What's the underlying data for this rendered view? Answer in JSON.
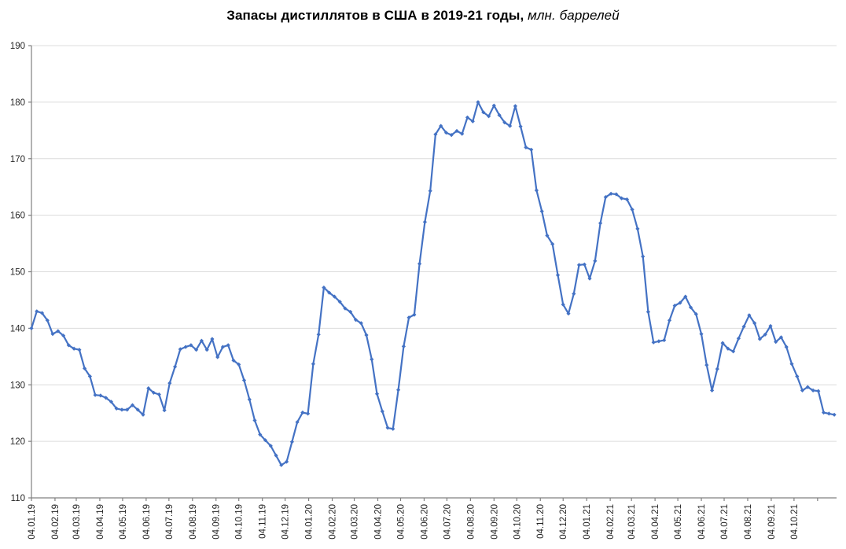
{
  "chart_data": {
    "type": "line",
    "title_main": "Запасы дистиллятов в США в 2019-21 годы,",
    "title_suffix": " млн. баррелей",
    "xlabel": "",
    "ylabel": "",
    "ylim": [
      110,
      190
    ],
    "y_ticks": [
      110,
      120,
      130,
      140,
      150,
      160,
      170,
      180,
      190
    ],
    "x_tick_labels": [
      "04.01.19",
      "04.02.19",
      "04.03.19",
      "04.04.19",
      "04.05.19",
      "04.06.19",
      "04.07.19",
      "04.08.19",
      "04.09.19",
      "04.10.19",
      "04.11.19",
      "04.12.19",
      "04.01.20",
      "04.02.20",
      "04.03.20",
      "04.04.20",
      "04.05.20",
      "04.06.20",
      "04.07.20",
      "04.08.20",
      "04.09.20",
      "04.10.20",
      "04.11.20",
      "04.12.20",
      "04.01.21",
      "04.02.21",
      "04.03.21",
      "04.04.21",
      "04.05.21",
      "04.06.21",
      "04.07.21",
      "04.08.21",
      "04.09.21",
      "04.10.21"
    ],
    "x_has_extra_unlabeled_tick": true,
    "frequency": "weekly",
    "first_point_date": "04.01.2019",
    "grid": "horizontal",
    "legend": "none",
    "marker": "diamond",
    "colors": {
      "line": "#4472C4",
      "grid": "#DCDCDC",
      "axis": "#808080",
      "tick_text": "#262626",
      "title_text": "#000000",
      "background": "#FFFFFF"
    },
    "values": [
      140.0,
      143.0,
      142.7,
      141.4,
      139.0,
      139.5,
      138.7,
      137.0,
      136.4,
      136.2,
      132.9,
      131.5,
      128.2,
      128.1,
      127.7,
      127.0,
      125.8,
      125.6,
      125.6,
      126.4,
      125.6,
      124.7,
      129.4,
      128.6,
      128.3,
      125.5,
      130.3,
      133.2,
      136.3,
      136.7,
      137.0,
      136.2,
      137.8,
      136.2,
      138.1,
      134.9,
      136.7,
      137.0,
      134.3,
      133.6,
      130.8,
      127.4,
      123.7,
      121.2,
      120.2,
      119.2,
      117.5,
      115.8,
      116.4,
      119.9,
      123.4,
      125.1,
      124.9,
      133.7,
      138.9,
      147.2,
      146.3,
      145.6,
      144.7,
      143.5,
      142.9,
      141.5,
      140.9,
      138.8,
      134.5,
      128.4,
      125.3,
      122.4,
      122.2,
      129.1,
      136.8,
      141.9,
      142.4,
      151.4,
      158.8,
      164.3,
      174.3,
      175.8,
      174.6,
      174.2,
      174.9,
      174.4,
      177.3,
      176.6,
      180.0,
      178.2,
      177.5,
      179.4,
      177.7,
      176.4,
      175.8,
      179.3,
      175.7,
      172.0,
      171.6,
      164.4,
      160.7,
      156.4,
      154.9,
      149.4,
      144.2,
      142.6,
      146.1,
      151.2,
      151.3,
      148.8,
      151.9,
      158.6,
      163.2,
      163.8,
      163.7,
      163.0,
      162.8,
      161.0,
      157.6,
      152.7,
      142.9,
      137.5,
      137.7,
      137.9,
      141.4,
      144.0,
      144.5,
      145.6,
      143.7,
      142.5,
      139.0,
      133.5,
      129.0,
      132.8,
      137.4,
      136.4,
      135.9,
      138.2,
      140.3,
      142.3,
      140.9,
      138.1,
      138.9,
      140.4,
      137.6,
      138.4,
      136.7,
      133.7,
      131.5,
      129.0,
      129.6,
      129.0,
      128.9,
      125.1,
      124.9,
      124.7
    ]
  }
}
